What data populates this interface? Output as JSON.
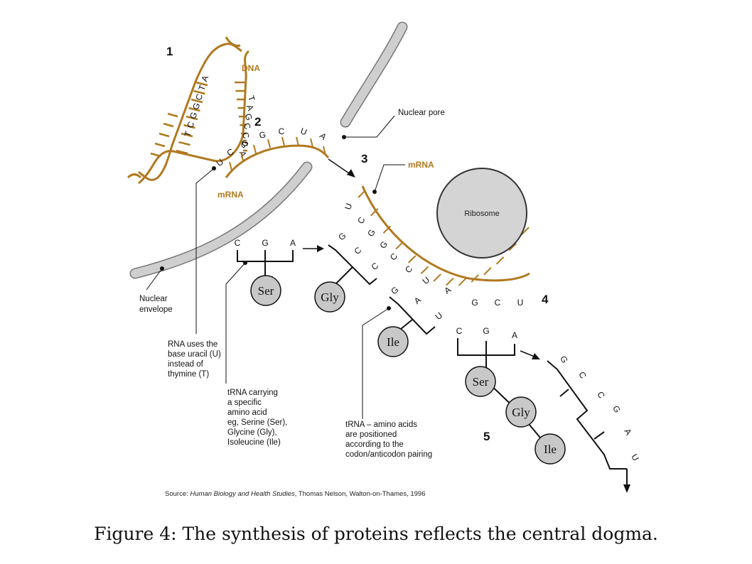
{
  "numbers": [
    "1",
    "2",
    "3",
    "4",
    "5"
  ],
  "labels": {
    "dna": "DNA",
    "mrna_1": "mRNA",
    "mrna_2": "mRNA",
    "nuclear_pore": "Nuclear pore",
    "ribosome": "Ribosome",
    "nuclear_envelope_1": "Nuclear",
    "nuclear_envelope_2": "envelope"
  },
  "dna_strand_bases": [
    "A",
    "T",
    "C",
    "G",
    "G",
    "C",
    "T"
  ],
  "dna_template_bases": [
    "T",
    "A",
    "G",
    "C",
    "C",
    "G",
    "A"
  ],
  "transcript_bases": [
    "U",
    "C",
    "G",
    "G",
    "C",
    "U",
    "A"
  ],
  "mrna_codon_bases": [
    "U",
    "C",
    "G",
    "G",
    "C",
    "C",
    "U",
    "A",
    "G",
    "C",
    "U"
  ],
  "trna": {
    "ser1": {
      "anticodon": [
        "C",
        "G",
        "A"
      ],
      "amino_acid": "Ser"
    },
    "gly1": {
      "anticodon": [
        "G",
        "C",
        "C"
      ],
      "amino_acid": "Gly"
    },
    "ile1": {
      "anticodon": [
        "G",
        "A",
        "U"
      ],
      "amino_acid": "Ile"
    },
    "ser2": {
      "anticodon": [
        "C",
        "G",
        "A"
      ],
      "amino_acid": "Ser"
    },
    "chain": [
      "Ser",
      "Gly",
      "Ile"
    ],
    "leaving_bases": [
      "G",
      "C",
      "C",
      "G",
      "A",
      "U"
    ]
  },
  "notes": {
    "uracil": [
      "RNA uses the",
      "base uracil (U)",
      "instead of",
      "thymine (T)"
    ],
    "trna_carrying": [
      "tRNA carrying",
      "a specific",
      "amino acid",
      "eg, Serine (Ser),",
      "Glycine (Gly),",
      "Isoleucine (Ile)"
    ],
    "trna_positioned": [
      "tRNA – amino acids",
      "are positioned",
      "according to the",
      "codon/anticodon pairing"
    ]
  },
  "source": {
    "prefix": "Source: ",
    "title": "Human Biology and Health Studies",
    "rest": ", Thomas Nelson, Walton-on-Thames, 1996"
  },
  "caption": "Figure 4: The synthesis of proteins reflects the central dogma.",
  "colors": {
    "gold": "#b0791f",
    "membrane": "#cfcfcf",
    "ribosome": "#d4d4d4",
    "amino": "#c8c8c8"
  }
}
